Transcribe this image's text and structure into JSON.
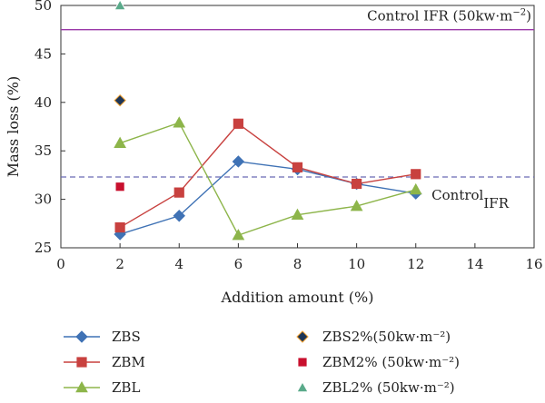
{
  "chart_data": {
    "type": "line",
    "xlabel": "Addition amount (%)",
    "ylabel": "Mass loss (%)",
    "xlim": [
      0,
      16
    ],
    "ylim": [
      25,
      50
    ],
    "xticks": [
      0,
      2,
      4,
      6,
      8,
      10,
      12,
      14,
      16
    ],
    "yticks": [
      25,
      30,
      35,
      40,
      45,
      50
    ],
    "grid": false,
    "legend": "below",
    "series": [
      {
        "name": "ZBS",
        "kind": "line",
        "marker": "diamond",
        "color": "#3f72b5",
        "x": [
          2,
          4,
          6,
          8,
          10,
          12
        ],
        "y": [
          26.4,
          28.3,
          33.9,
          33.1,
          31.6,
          30.6
        ]
      },
      {
        "name": "ZBM",
        "kind": "line",
        "marker": "square",
        "color": "#c8413f",
        "x": [
          2,
          4,
          6,
          8,
          10,
          12
        ],
        "y": [
          27.1,
          30.7,
          37.8,
          33.3,
          31.6,
          32.6
        ]
      },
      {
        "name": "ZBL",
        "kind": "line",
        "marker": "triangle",
        "color": "#8db54a",
        "x": [
          2,
          4,
          6,
          8,
          10,
          12
        ],
        "y": [
          35.8,
          37.9,
          26.3,
          28.4,
          29.3,
          31.0
        ]
      },
      {
        "name": "ZBS2%(50kw·m⁻²)",
        "kind": "point",
        "marker": "diamond",
        "color": "#1d3557",
        "edge": "#f0a030",
        "x": [
          2
        ],
        "y": [
          40.2
        ]
      },
      {
        "name": "ZBM2% (50kw·m⁻²)",
        "kind": "point",
        "marker": "square",
        "color": "#c8102e",
        "edge": "#ffffff",
        "x": [
          2
        ],
        "y": [
          31.3
        ]
      },
      {
        "name": "ZBL2% (50kw·m⁻²)",
        "kind": "point",
        "marker": "triangle",
        "color": "#5aaa8a",
        "edge": "#ffffff",
        "x": [
          2
        ],
        "y": [
          50.0
        ]
      }
    ],
    "reference_lines": [
      {
        "label_main": "Control IFR (50kw·m",
        "label_sup": "−2",
        "label_end": ")",
        "y": 47.5,
        "color": "#9a38a8",
        "style": "solid"
      },
      {
        "label_main": "Control",
        "label_sub": "IFR",
        "y": 32.3,
        "color": "#6a6ab5",
        "style": "dashed"
      }
    ]
  }
}
